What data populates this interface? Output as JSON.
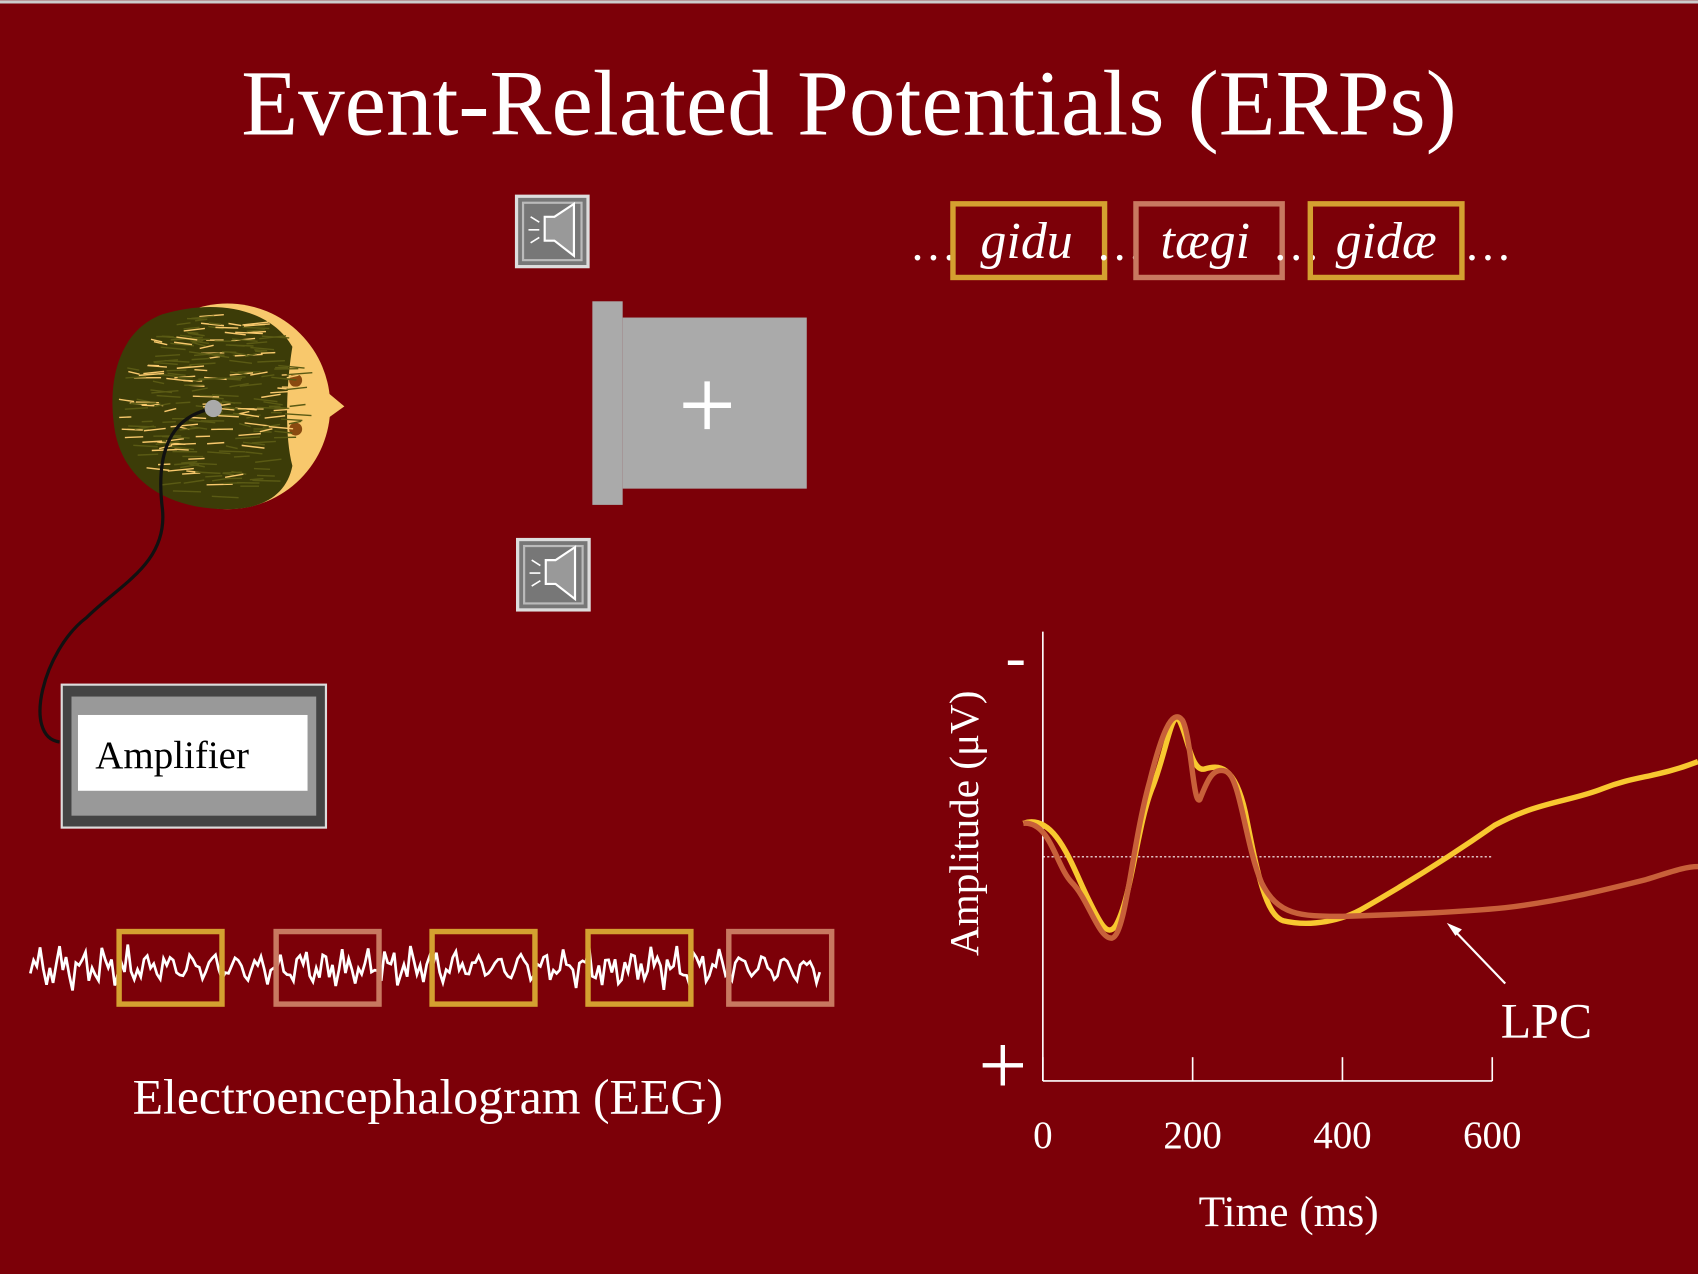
{
  "title": "Event-Related Potentials (ERPs)",
  "stimuli": {
    "separator": "…",
    "words": [
      "gidu",
      "tægi",
      "gidæ"
    ]
  },
  "amplifier": "Amplifier",
  "eeg_label": "Electroencephalogram (EEG)",
  "erp_chart": {
    "y_label": "Amplitude (μV)",
    "x_label": "Time (ms)",
    "y_top_label": "-",
    "y_bottom_label": "+",
    "xlim": [
      0,
      600
    ],
    "xticks": [
      0,
      200,
      400,
      600
    ],
    "annotation": "LPC"
  }
}
